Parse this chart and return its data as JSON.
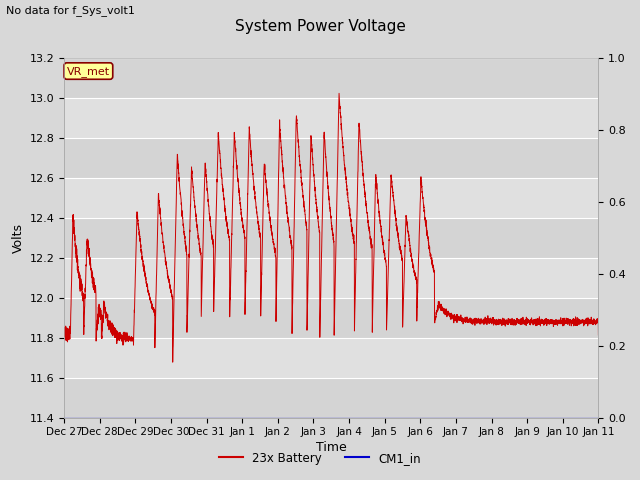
{
  "title": "System Power Voltage",
  "subtitle": "No data for f_Sys_volt1",
  "xlabel": "Time",
  "ylabel": "Volts",
  "ylim": [
    11.4,
    13.2
  ],
  "ylim_right": [
    0.0,
    1.0
  ],
  "yticks_left": [
    11.4,
    11.6,
    11.8,
    12.0,
    12.2,
    12.4,
    12.6,
    12.8,
    13.0,
    13.2
  ],
  "yticks_right": [
    0.0,
    0.2,
    0.4,
    0.6,
    0.8,
    1.0
  ],
  "xtick_labels": [
    "Dec 27",
    "Dec 28",
    "Dec 29",
    "Dec 30",
    "Dec 31",
    "Jan 1",
    "Jan 2",
    "Jan 3",
    "Jan 4",
    "Jan 5",
    "Jan 6",
    "Jan 7",
    "Jan 8",
    "Jan 9",
    "Jan 10",
    "Jan 11"
  ],
  "annotation_text": "VR_met",
  "annotation_color": "#880000",
  "annotation_bg": "#ffff99",
  "line_color": "#cc0000",
  "line_color_blue": "#0000cc",
  "legend_labels": [
    "23x Battery",
    "CM1_in"
  ],
  "background_color": "#d8d8d8",
  "band_colors": [
    "#d4d4d4",
    "#e0e0e0"
  ],
  "figsize": [
    6.4,
    4.8
  ],
  "dpi": 100,
  "cycles": [
    {
      "t_rise": 0.18,
      "t_peak": 0.25,
      "v_peak": 12.41,
      "v_base": 11.82,
      "decay": 0.25
    },
    {
      "t_rise": 0.55,
      "t_peak": 0.65,
      "v_peak": 12.3,
      "v_base": 11.82,
      "decay": 0.28
    },
    {
      "t_rise": 0.9,
      "t_peak": 0.97,
      "v_peak": 11.96,
      "v_base": 11.79,
      "decay": 0.2
    },
    {
      "t_rise": 1.05,
      "t_peak": 1.12,
      "v_peak": 11.96,
      "v_base": 11.79,
      "decay": 0.2
    },
    {
      "t_rise": 1.95,
      "t_peak": 2.05,
      "v_peak": 12.43,
      "v_base": 11.76,
      "decay": 0.35
    },
    {
      "t_rise": 2.55,
      "t_peak": 2.65,
      "v_peak": 12.52,
      "v_base": 11.75,
      "decay": 0.35
    },
    {
      "t_rise": 3.05,
      "t_peak": 3.18,
      "v_peak": 12.72,
      "v_base": 11.68,
      "decay": 0.4
    },
    {
      "t_rise": 3.45,
      "t_peak": 3.58,
      "v_peak": 12.65,
      "v_base": 11.82,
      "decay": 0.35
    },
    {
      "t_rise": 3.85,
      "t_peak": 3.96,
      "v_peak": 12.68,
      "v_base": 11.9,
      "decay": 0.3
    },
    {
      "t_rise": 4.2,
      "t_peak": 4.33,
      "v_peak": 12.82,
      "v_base": 11.92,
      "decay": 0.35
    },
    {
      "t_rise": 4.65,
      "t_peak": 4.78,
      "v_peak": 12.82,
      "v_base": 11.9,
      "decay": 0.35
    },
    {
      "t_rise": 5.08,
      "t_peak": 5.2,
      "v_peak": 12.85,
      "v_base": 11.92,
      "decay": 0.35
    },
    {
      "t_rise": 5.52,
      "t_peak": 5.62,
      "v_peak": 12.68,
      "v_base": 11.9,
      "decay": 0.35
    },
    {
      "t_rise": 5.95,
      "t_peak": 6.05,
      "v_peak": 12.88,
      "v_base": 11.88,
      "decay": 0.35
    },
    {
      "t_rise": 6.4,
      "t_peak": 6.52,
      "v_peak": 12.92,
      "v_base": 11.82,
      "decay": 0.4
    },
    {
      "t_rise": 6.82,
      "t_peak": 6.93,
      "v_peak": 12.82,
      "v_base": 11.82,
      "decay": 0.35
    },
    {
      "t_rise": 7.18,
      "t_peak": 7.3,
      "v_peak": 12.83,
      "v_base": 11.8,
      "decay": 0.35
    },
    {
      "t_rise": 7.58,
      "t_peak": 7.72,
      "v_peak": 13.02,
      "v_base": 11.8,
      "decay": 0.45
    },
    {
      "t_rise": 8.15,
      "t_peak": 8.28,
      "v_peak": 12.88,
      "v_base": 11.82,
      "decay": 0.4
    },
    {
      "t_rise": 8.65,
      "t_peak": 8.75,
      "v_peak": 12.62,
      "v_base": 11.82,
      "decay": 0.35
    },
    {
      "t_rise": 9.05,
      "t_peak": 9.18,
      "v_peak": 12.62,
      "v_base": 11.82,
      "decay": 0.4
    },
    {
      "t_rise": 9.5,
      "t_peak": 9.6,
      "v_peak": 12.42,
      "v_base": 11.82,
      "decay": 0.35
    },
    {
      "t_rise": 9.9,
      "t_peak": 10.02,
      "v_peak": 12.6,
      "v_base": 11.88,
      "decay": 0.35
    },
    {
      "t_rise": 10.4,
      "t_peak": 10.52,
      "v_peak": 11.97,
      "v_base": 11.88,
      "decay": 0.3
    }
  ]
}
